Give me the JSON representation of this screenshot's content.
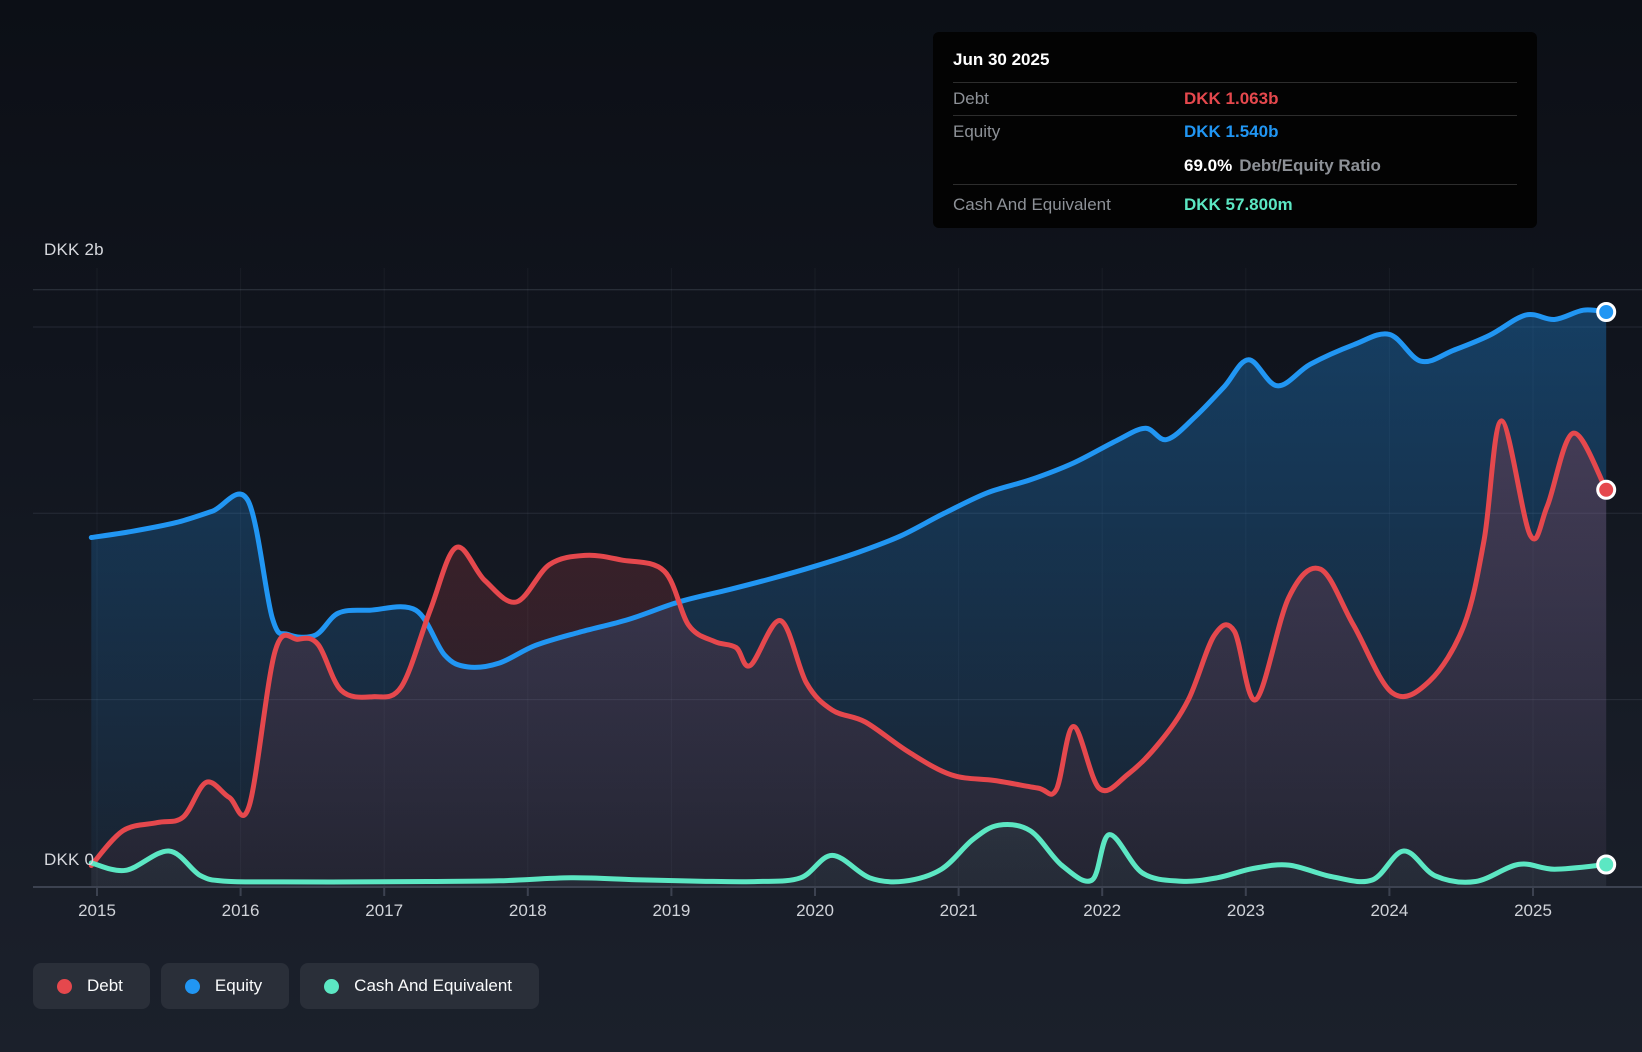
{
  "tooltip": {
    "date": "Jun 30 2025",
    "debt_label": "Debt",
    "debt_value": "DKK 1.063b",
    "equity_label": "Equity",
    "equity_value": "DKK 1.540b",
    "ratio_value": "69.0%",
    "ratio_label": "Debt/Equity Ratio",
    "cash_label": "Cash And Equivalent",
    "cash_value": "DKK 57.800m"
  },
  "y_axis": {
    "top_label": "DKK 2b",
    "bottom_label": "DKK 0"
  },
  "x_axis": {
    "years": [
      "2015",
      "2016",
      "2017",
      "2018",
      "2019",
      "2020",
      "2021",
      "2022",
      "2023",
      "2024",
      "2025"
    ]
  },
  "legend": [
    {
      "label": "Debt",
      "color": "#e5484d"
    },
    {
      "label": "Equity",
      "color": "#2196f3"
    },
    {
      "label": "Cash And Equivalent",
      "color": "#5ce7c3"
    }
  ],
  "colors": {
    "debt": "#e5484d",
    "equity": "#2196f3",
    "cash": "#5ce7c3",
    "gridline": "rgba(180,190,210,0.12)",
    "gridline_top": "rgba(185,195,215,0.20)",
    "vgrid": "rgba(170,185,210,0.06)",
    "axis": "#3c4250",
    "dot_ring": "#ffffff"
  },
  "chart_data": {
    "type": "area",
    "title": "Debt to Equity History",
    "unit": "DKK billions",
    "x_range": [
      2014.96,
      2025.54
    ],
    "ylim": [
      0,
      2
    ],
    "y_gridline_values_b": [
      1.6,
      1.5,
      1.0,
      0.5
    ],
    "x_tick_years": [
      2015,
      2016,
      2017,
      2018,
      2019,
      2020,
      2021,
      2022,
      2023,
      2024,
      2025
    ],
    "grid": true,
    "legend_position": "bottom-left",
    "tooltip_point": {
      "date": "Jun 30 2025",
      "debt_b": 1.063,
      "equity_b": 1.54,
      "cash_b": 0.0578,
      "debt_equity_ratio_pct": 69.0
    },
    "series": [
      {
        "name": "Equity",
        "color": "#2196f3",
        "points": [
          [
            2014.96,
            0.935
          ],
          [
            2015.25,
            0.952
          ],
          [
            2015.55,
            0.975
          ],
          [
            2015.8,
            1.005
          ],
          [
            2016.05,
            1.035
          ],
          [
            2016.22,
            0.72
          ],
          [
            2016.33,
            0.675
          ],
          [
            2016.52,
            0.673
          ],
          [
            2016.68,
            0.732
          ],
          [
            2016.9,
            0.74
          ],
          [
            2017.22,
            0.74
          ],
          [
            2017.42,
            0.62
          ],
          [
            2017.58,
            0.588
          ],
          [
            2017.8,
            0.598
          ],
          [
            2018.05,
            0.645
          ],
          [
            2018.35,
            0.68
          ],
          [
            2018.7,
            0.715
          ],
          [
            2019.05,
            0.762
          ],
          [
            2019.4,
            0.795
          ],
          [
            2019.7,
            0.825
          ],
          [
            2020.0,
            0.858
          ],
          [
            2020.3,
            0.895
          ],
          [
            2020.6,
            0.94
          ],
          [
            2020.9,
            1.0
          ],
          [
            2021.2,
            1.055
          ],
          [
            2021.5,
            1.09
          ],
          [
            2021.8,
            1.135
          ],
          [
            2022.1,
            1.195
          ],
          [
            2022.3,
            1.228
          ],
          [
            2022.45,
            1.198
          ],
          [
            2022.65,
            1.26
          ],
          [
            2022.85,
            1.34
          ],
          [
            2023.02,
            1.412
          ],
          [
            2023.22,
            1.342
          ],
          [
            2023.45,
            1.4
          ],
          [
            2023.75,
            1.452
          ],
          [
            2024.0,
            1.48
          ],
          [
            2024.22,
            1.408
          ],
          [
            2024.45,
            1.438
          ],
          [
            2024.7,
            1.478
          ],
          [
            2024.95,
            1.532
          ],
          [
            2025.15,
            1.52
          ],
          [
            2025.35,
            1.545
          ],
          [
            2025.51,
            1.54
          ]
        ]
      },
      {
        "name": "Debt",
        "color": "#e5484d",
        "points": [
          [
            2014.96,
            0.055
          ],
          [
            2015.18,
            0.148
          ],
          [
            2015.42,
            0.17
          ],
          [
            2015.6,
            0.185
          ],
          [
            2015.76,
            0.278
          ],
          [
            2015.92,
            0.238
          ],
          [
            2016.06,
            0.215
          ],
          [
            2016.24,
            0.63
          ],
          [
            2016.4,
            0.662
          ],
          [
            2016.54,
            0.648
          ],
          [
            2016.7,
            0.525
          ],
          [
            2016.92,
            0.508
          ],
          [
            2017.12,
            0.535
          ],
          [
            2017.32,
            0.74
          ],
          [
            2017.5,
            0.908
          ],
          [
            2017.7,
            0.82
          ],
          [
            2017.92,
            0.762
          ],
          [
            2018.15,
            0.862
          ],
          [
            2018.4,
            0.887
          ],
          [
            2018.65,
            0.875
          ],
          [
            2018.95,
            0.845
          ],
          [
            2019.12,
            0.7
          ],
          [
            2019.3,
            0.656
          ],
          [
            2019.45,
            0.64
          ],
          [
            2019.55,
            0.592
          ],
          [
            2019.76,
            0.712
          ],
          [
            2019.94,
            0.545
          ],
          [
            2020.12,
            0.472
          ],
          [
            2020.35,
            0.44
          ],
          [
            2020.65,
            0.36
          ],
          [
            2020.95,
            0.298
          ],
          [
            2021.25,
            0.283
          ],
          [
            2021.55,
            0.263
          ],
          [
            2021.68,
            0.258
          ],
          [
            2021.8,
            0.428
          ],
          [
            2021.98,
            0.262
          ],
          [
            2022.18,
            0.3
          ],
          [
            2022.4,
            0.385
          ],
          [
            2022.6,
            0.5
          ],
          [
            2022.78,
            0.672
          ],
          [
            2022.92,
            0.684
          ],
          [
            2023.07,
            0.5
          ],
          [
            2023.3,
            0.775
          ],
          [
            2023.52,
            0.85
          ],
          [
            2023.75,
            0.7
          ],
          [
            2024.02,
            0.518
          ],
          [
            2024.28,
            0.55
          ],
          [
            2024.52,
            0.7
          ],
          [
            2024.66,
            0.93
          ],
          [
            2024.78,
            1.248
          ],
          [
            2024.98,
            0.942
          ],
          [
            2025.1,
            1.02
          ],
          [
            2025.28,
            1.215
          ],
          [
            2025.51,
            1.063
          ]
        ]
      },
      {
        "name": "Cash And Equivalent",
        "color": "#5ce7c3",
        "points": [
          [
            2014.96,
            0.062
          ],
          [
            2015.2,
            0.042
          ],
          [
            2015.5,
            0.094
          ],
          [
            2015.72,
            0.028
          ],
          [
            2015.9,
            0.013
          ],
          [
            2016.3,
            0.011
          ],
          [
            2016.8,
            0.011
          ],
          [
            2017.3,
            0.012
          ],
          [
            2017.8,
            0.014
          ],
          [
            2018.3,
            0.022
          ],
          [
            2018.75,
            0.017
          ],
          [
            2019.2,
            0.013
          ],
          [
            2019.6,
            0.012
          ],
          [
            2019.9,
            0.022
          ],
          [
            2020.12,
            0.082
          ],
          [
            2020.38,
            0.022
          ],
          [
            2020.62,
            0.013
          ],
          [
            2020.88,
            0.045
          ],
          [
            2021.1,
            0.125
          ],
          [
            2021.28,
            0.163
          ],
          [
            2021.5,
            0.148
          ],
          [
            2021.72,
            0.055
          ],
          [
            2021.93,
            0.016
          ],
          [
            2022.05,
            0.138
          ],
          [
            2022.28,
            0.035
          ],
          [
            2022.55,
            0.013
          ],
          [
            2022.8,
            0.022
          ],
          [
            2023.05,
            0.047
          ],
          [
            2023.3,
            0.056
          ],
          [
            2023.6,
            0.025
          ],
          [
            2023.88,
            0.016
          ],
          [
            2024.1,
            0.094
          ],
          [
            2024.32,
            0.027
          ],
          [
            2024.6,
            0.012
          ],
          [
            2024.9,
            0.058
          ],
          [
            2025.15,
            0.045
          ],
          [
            2025.51,
            0.0578
          ]
        ]
      }
    ]
  }
}
